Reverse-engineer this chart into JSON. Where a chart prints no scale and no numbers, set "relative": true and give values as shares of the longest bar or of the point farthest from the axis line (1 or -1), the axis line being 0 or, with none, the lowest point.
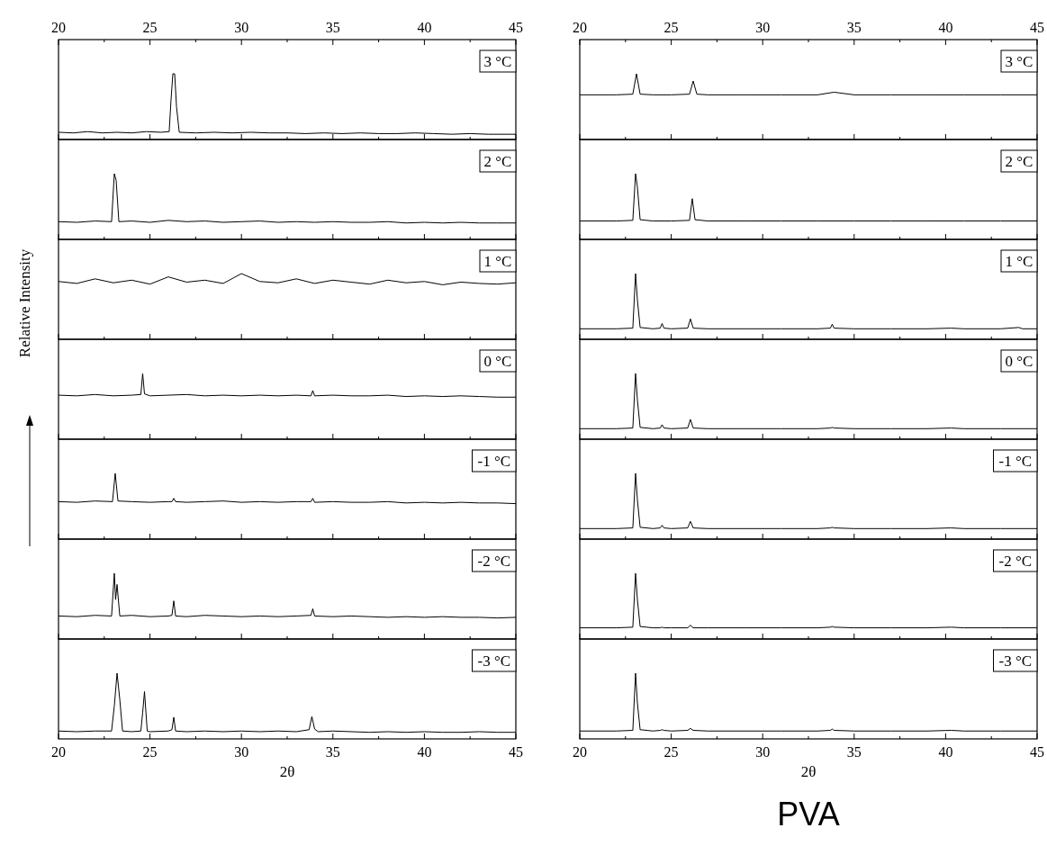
{
  "chart_data": [
    {
      "type": "line",
      "relative": true,
      "xlim": [
        20,
        45
      ],
      "xticks": [
        20,
        25,
        30,
        35,
        40,
        45
      ],
      "annotations": [
        "3 °C"
      ],
      "series": [
        {
          "color": "#000000",
          "x": [
            20,
            20.8,
            21.6,
            22.4,
            23.2,
            24,
            24.8,
            25.6,
            26.05,
            26.15,
            26.25,
            26.35,
            26.45,
            26.6,
            27.5,
            28.5,
            29.5,
            30.5,
            31.5,
            32.5,
            33.5,
            34.5,
            35.5,
            36.5,
            37.5,
            38.5,
            39.5,
            40.5,
            41.5,
            42.5,
            43.5,
            44.5,
            45
          ],
          "values": [
            0.11,
            0.1,
            0.12,
            0.1,
            0.11,
            0.1,
            0.12,
            0.11,
            0.12,
            0.6,
            1,
            1,
            0.5,
            0.11,
            0.1,
            0.11,
            0.1,
            0.11,
            0.1,
            0.1,
            0.09,
            0.1,
            0.09,
            0.1,
            0.09,
            0.09,
            0.1,
            0.09,
            0.08,
            0.09,
            0.08,
            0.08,
            0.08
          ]
        }
      ]
    },
    {
      "type": "line",
      "relative": true,
      "xlim": [
        20,
        45
      ],
      "xticks": [
        20,
        25,
        30,
        35,
        40,
        45
      ],
      "tick_labels": false,
      "annotations": [
        "2 °C"
      ],
      "series": [
        {
          "color": "#000000",
          "x": [
            20,
            21,
            22,
            22.9,
            23.05,
            23.15,
            23.3,
            24,
            25,
            26,
            27,
            28,
            29,
            30,
            31,
            32,
            33,
            34,
            35,
            36,
            37,
            38,
            39,
            40,
            41,
            42,
            43,
            44,
            45
          ],
          "values": [
            0.27,
            0.26,
            0.28,
            0.27,
            1,
            0.9,
            0.27,
            0.28,
            0.26,
            0.29,
            0.27,
            0.28,
            0.26,
            0.27,
            0.28,
            0.26,
            0.27,
            0.26,
            0.27,
            0.26,
            0.26,
            0.27,
            0.25,
            0.26,
            0.25,
            0.26,
            0.25,
            0.25,
            0.25
          ]
        }
      ]
    },
    {
      "type": "line",
      "relative": true,
      "xlim": [
        20,
        45
      ],
      "xticks": [
        20,
        25,
        30,
        35,
        40,
        45
      ],
      "tick_labels": false,
      "annotations": [
        "1 °C"
      ],
      "series": [
        {
          "color": "#000000",
          "x": [
            20,
            21,
            22,
            23,
            24,
            25,
            26,
            27,
            28,
            29,
            30,
            31,
            32,
            33,
            34,
            35,
            36,
            37,
            38,
            39,
            40,
            41,
            42,
            43,
            44,
            45
          ],
          "values": [
            0.88,
            0.85,
            0.92,
            0.86,
            0.9,
            0.84,
            0.95,
            0.87,
            0.9,
            0.85,
            1,
            0.88,
            0.86,
            0.92,
            0.85,
            0.9,
            0.87,
            0.84,
            0.9,
            0.86,
            0.88,
            0.83,
            0.87,
            0.85,
            0.84,
            0.86
          ]
        }
      ]
    },
    {
      "type": "line",
      "relative": true,
      "xlim": [
        20,
        45
      ],
      "xticks": [
        20,
        25,
        30,
        35,
        40,
        45
      ],
      "tick_labels": false,
      "ylabel": "Relative Intensity",
      "annotations": [
        "0 °C"
      ],
      "series": [
        {
          "color": "#000000",
          "x": [
            20,
            21,
            22,
            23,
            24,
            24.5,
            24.6,
            24.7,
            25,
            26,
            27,
            28,
            29,
            30,
            31,
            32,
            33,
            33.8,
            33.9,
            34,
            35,
            36,
            37,
            38,
            39,
            40,
            41,
            42,
            43,
            44,
            45
          ],
          "values": [
            0.67,
            0.66,
            0.68,
            0.66,
            0.67,
            0.68,
            1,
            0.69,
            0.66,
            0.67,
            0.68,
            0.66,
            0.67,
            0.66,
            0.67,
            0.66,
            0.67,
            0.66,
            0.74,
            0.66,
            0.67,
            0.66,
            0.66,
            0.67,
            0.65,
            0.66,
            0.65,
            0.66,
            0.65,
            0.64,
            0.64
          ]
        }
      ]
    },
    {
      "type": "line",
      "relative": true,
      "xlim": [
        20,
        45
      ],
      "xticks": [
        20,
        25,
        30,
        35,
        40,
        45
      ],
      "tick_labels": false,
      "annotations": [
        "-1 °C"
      ],
      "series": [
        {
          "color": "#000000",
          "x": [
            20,
            21,
            22,
            22.95,
            23.1,
            23.25,
            24,
            25,
            26,
            26.2,
            26.3,
            26.4,
            27,
            28,
            29,
            30,
            31,
            32,
            33,
            33.8,
            33.9,
            34,
            35,
            36,
            37,
            38,
            39,
            40,
            41,
            42,
            43,
            44,
            45
          ],
          "values": [
            0.57,
            0.56,
            0.58,
            0.57,
            1,
            0.58,
            0.57,
            0.56,
            0.57,
            0.57,
            0.62,
            0.57,
            0.56,
            0.57,
            0.58,
            0.56,
            0.57,
            0.56,
            0.57,
            0.57,
            0.62,
            0.56,
            0.57,
            0.56,
            0.56,
            0.57,
            0.55,
            0.56,
            0.55,
            0.56,
            0.55,
            0.55,
            0.54
          ]
        }
      ]
    },
    {
      "type": "line",
      "relative": true,
      "xlim": [
        20,
        45
      ],
      "xticks": [
        20,
        25,
        30,
        35,
        40,
        45
      ],
      "tick_labels": false,
      "annotations": [
        "-2 °C"
      ],
      "series": [
        {
          "color": "#000000",
          "x": [
            20,
            21,
            22,
            22.9,
            23.05,
            23.12,
            23.2,
            23.35,
            24,
            25,
            26,
            26.2,
            26.3,
            26.4,
            27,
            28,
            29,
            30,
            31,
            32,
            33,
            33.8,
            33.9,
            34,
            35,
            36,
            37,
            38,
            39,
            40,
            41,
            42,
            43,
            44,
            45
          ],
          "values": [
            0.35,
            0.34,
            0.36,
            0.35,
            1,
            0.6,
            0.83,
            0.35,
            0.36,
            0.34,
            0.35,
            0.36,
            0.58,
            0.35,
            0.34,
            0.36,
            0.35,
            0.34,
            0.35,
            0.34,
            0.35,
            0.36,
            0.46,
            0.35,
            0.34,
            0.35,
            0.34,
            0.33,
            0.34,
            0.33,
            0.34,
            0.33,
            0.33,
            0.32,
            0.33
          ]
        }
      ]
    },
    {
      "type": "line",
      "relative": true,
      "xlim": [
        20,
        45
      ],
      "xticks": [
        20,
        25,
        30,
        35,
        40,
        45
      ],
      "tick_labels": "x",
      "xlabel": "2θ",
      "annotations": [
        "-3 °C"
      ],
      "series": [
        {
          "color": "#000000",
          "x": [
            20,
            21,
            22,
            22.9,
            23.05,
            23.2,
            23.35,
            23.5,
            24,
            24.5,
            24.6,
            24.7,
            24.85,
            25,
            26,
            26.2,
            26.3,
            26.4,
            27,
            28,
            29,
            30,
            31,
            32,
            33,
            33.7,
            33.85,
            34,
            34.2,
            35,
            36,
            37,
            38,
            39,
            40,
            41,
            42,
            43,
            44,
            45
          ],
          "values": [
            0.12,
            0.11,
            0.12,
            0.12,
            0.5,
            1,
            0.6,
            0.12,
            0.11,
            0.12,
            0.4,
            0.72,
            0.12,
            0.11,
            0.12,
            0.14,
            0.33,
            0.12,
            0.11,
            0.12,
            0.11,
            0.12,
            0.11,
            0.12,
            0.11,
            0.14,
            0.34,
            0.15,
            0.11,
            0.12,
            0.11,
            0.1,
            0.11,
            0.1,
            0.11,
            0.1,
            0.1,
            0.11,
            0.1,
            0.1
          ]
        }
      ]
    },
    {
      "type": "line",
      "relative": true,
      "xlim": [
        20,
        45
      ],
      "xticks": [
        20,
        25,
        30,
        35,
        40,
        45
      ],
      "annotations": [
        "3 °C"
      ],
      "series": [
        {
          "color": "#000000",
          "x": [
            20,
            22,
            22.9,
            23.1,
            23.3,
            24,
            25,
            26,
            26.2,
            26.4,
            27,
            29,
            31,
            33,
            33.9,
            35,
            37,
            39,
            41,
            43,
            45
          ],
          "values": [
            0.68,
            0.68,
            0.69,
            1,
            0.69,
            0.68,
            0.68,
            0.69,
            0.89,
            0.69,
            0.68,
            0.68,
            0.68,
            0.68,
            0.72,
            0.68,
            0.68,
            0.68,
            0.68,
            0.68,
            0.68
          ]
        }
      ]
    },
    {
      "type": "line",
      "relative": true,
      "xlim": [
        20,
        45
      ],
      "xticks": [
        20,
        25,
        30,
        35,
        40,
        45
      ],
      "tick_labels": false,
      "annotations": [
        "2 °C"
      ],
      "series": [
        {
          "color": "#000000",
          "x": [
            20,
            22,
            22.9,
            23.05,
            23.15,
            23.3,
            24,
            25,
            26,
            26.15,
            26.3,
            27,
            29,
            31,
            33,
            35,
            37,
            39,
            41,
            43,
            45
          ],
          "values": [
            0.28,
            0.28,
            0.29,
            1,
            0.8,
            0.3,
            0.28,
            0.28,
            0.29,
            0.62,
            0.3,
            0.28,
            0.28,
            0.28,
            0.28,
            0.28,
            0.28,
            0.28,
            0.28,
            0.28,
            0.28
          ]
        }
      ]
    },
    {
      "type": "line",
      "relative": true,
      "xlim": [
        20,
        45
      ],
      "xticks": [
        20,
        25,
        30,
        35,
        40,
        45
      ],
      "tick_labels": false,
      "annotations": [
        "1 °C"
      ],
      "series": [
        {
          "color": "#000000",
          "x": [
            20,
            22,
            22.9,
            23.05,
            23.15,
            23.3,
            24,
            24.4,
            24.5,
            24.6,
            25,
            25.9,
            26.05,
            26.2,
            27,
            29,
            31,
            33,
            33.7,
            33.8,
            33.9,
            35,
            37,
            39,
            40.3,
            41,
            43,
            44,
            44.2,
            45
          ],
          "values": [
            0.16,
            0.16,
            0.17,
            1,
            0.6,
            0.18,
            0.16,
            0.17,
            0.24,
            0.17,
            0.16,
            0.17,
            0.31,
            0.17,
            0.16,
            0.16,
            0.16,
            0.16,
            0.17,
            0.23,
            0.17,
            0.16,
            0.16,
            0.16,
            0.17,
            0.16,
            0.16,
            0.18,
            0.16,
            0.16
          ]
        }
      ]
    },
    {
      "type": "line",
      "relative": true,
      "xlim": [
        20,
        45
      ],
      "xticks": [
        20,
        25,
        30,
        35,
        40,
        45
      ],
      "tick_labels": false,
      "annotations": [
        "0 °C"
      ],
      "series": [
        {
          "color": "#000000",
          "x": [
            20,
            22,
            22.9,
            23.05,
            23.15,
            23.3,
            24,
            24.4,
            24.5,
            24.6,
            25,
            25.9,
            26.05,
            26.2,
            27,
            29,
            31,
            33,
            33.7,
            33.8,
            33.9,
            35,
            37,
            39,
            40.3,
            41,
            43,
            45
          ],
          "values": [
            0.16,
            0.16,
            0.17,
            1,
            0.6,
            0.18,
            0.16,
            0.17,
            0.22,
            0.17,
            0.16,
            0.17,
            0.3,
            0.17,
            0.16,
            0.16,
            0.16,
            0.16,
            0.17,
            0.18,
            0.17,
            0.16,
            0.16,
            0.16,
            0.17,
            0.16,
            0.16,
            0.16
          ]
        }
      ]
    },
    {
      "type": "line",
      "relative": true,
      "xlim": [
        20,
        45
      ],
      "xticks": [
        20,
        25,
        30,
        35,
        40,
        45
      ],
      "tick_labels": false,
      "annotations": [
        "-1 °C"
      ],
      "series": [
        {
          "color": "#000000",
          "x": [
            20,
            22,
            22.9,
            23.05,
            23.15,
            23.3,
            24,
            24.4,
            24.5,
            24.6,
            25,
            25.9,
            26.05,
            26.2,
            27,
            29,
            31,
            33,
            33.7,
            33.8,
            33.9,
            35,
            37,
            39,
            40.3,
            41,
            43,
            45
          ],
          "values": [
            0.16,
            0.16,
            0.17,
            1,
            0.6,
            0.18,
            0.16,
            0.17,
            0.21,
            0.17,
            0.16,
            0.17,
            0.27,
            0.17,
            0.16,
            0.16,
            0.16,
            0.16,
            0.17,
            0.18,
            0.17,
            0.16,
            0.16,
            0.16,
            0.17,
            0.16,
            0.16,
            0.16
          ]
        }
      ]
    },
    {
      "type": "line",
      "relative": true,
      "xlim": [
        20,
        45
      ],
      "xticks": [
        20,
        25,
        30,
        35,
        40,
        45
      ],
      "tick_labels": false,
      "annotations": [
        "-2 °C"
      ],
      "series": [
        {
          "color": "#000000",
          "x": [
            20,
            22,
            22.9,
            23.05,
            23.15,
            23.3,
            24,
            24.4,
            24.5,
            24.6,
            25,
            25.9,
            26.05,
            26.2,
            27,
            29,
            31,
            33,
            33.7,
            33.8,
            33.9,
            35,
            37,
            39,
            40.3,
            41,
            43,
            45
          ],
          "values": [
            0.17,
            0.17,
            0.18,
            1,
            0.6,
            0.19,
            0.17,
            0.17,
            0.18,
            0.17,
            0.17,
            0.17,
            0.21,
            0.17,
            0.17,
            0.17,
            0.17,
            0.17,
            0.18,
            0.19,
            0.18,
            0.17,
            0.17,
            0.17,
            0.18,
            0.17,
            0.17,
            0.17
          ]
        }
      ]
    },
    {
      "type": "line",
      "relative": true,
      "xlim": [
        20,
        45
      ],
      "xticks": [
        20,
        25,
        30,
        35,
        40,
        45
      ],
      "tick_labels": "x",
      "xlabel": "2θ",
      "title": "PVA",
      "annotations": [
        "-3 °C"
      ],
      "series": [
        {
          "color": "#000000",
          "x": [
            20,
            22,
            22.9,
            23.05,
            23.15,
            23.3,
            24,
            24.4,
            24.5,
            24.6,
            25,
            25.9,
            26.05,
            26.2,
            27,
            29,
            31,
            33,
            33.7,
            33.8,
            33.9,
            35,
            37,
            39,
            40.3,
            41,
            43,
            45
          ],
          "values": [
            0.12,
            0.12,
            0.13,
            1,
            0.55,
            0.14,
            0.12,
            0.13,
            0.14,
            0.13,
            0.12,
            0.13,
            0.16,
            0.13,
            0.12,
            0.12,
            0.12,
            0.12,
            0.13,
            0.15,
            0.13,
            0.12,
            0.12,
            0.12,
            0.13,
            0.12,
            0.12,
            0.12
          ]
        }
      ]
    }
  ]
}
